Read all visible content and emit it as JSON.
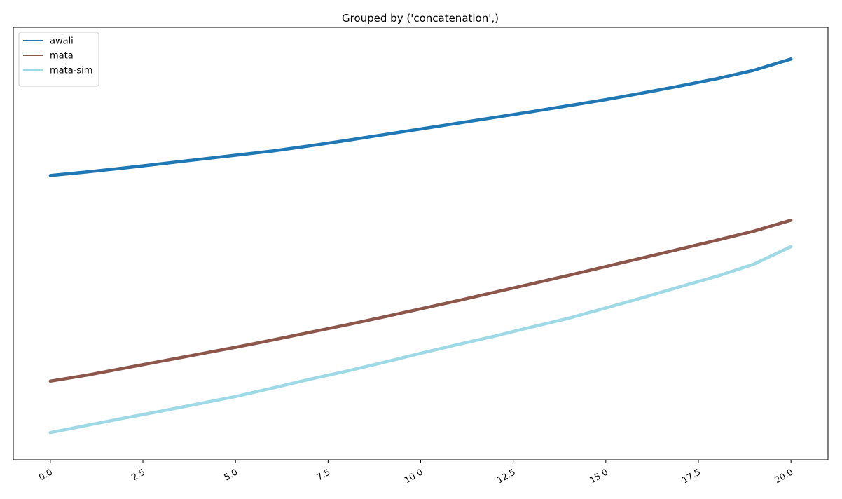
{
  "chart_data": {
    "type": "line",
    "title": "Grouped by ('concatenation',)",
    "xlabel": "",
    "ylabel": "",
    "xlim": [
      -1,
      21
    ],
    "ylim": [
      -0.3,
      14.0
    ],
    "xticks": [
      0,
      2.5,
      5,
      7.5,
      10,
      12.5,
      15,
      17.5,
      20
    ],
    "xtick_labels": [
      "0.0",
      "2.5",
      "5.0",
      "7.5",
      "10.0",
      "12.5",
      "15.0",
      "17.5",
      "20.0"
    ],
    "yticks_shown": false,
    "grid": false,
    "legend_position": "top-left",
    "x": [
      0,
      1,
      2,
      3,
      4,
      5,
      6,
      7,
      8,
      9,
      10,
      11,
      12,
      13,
      14,
      15,
      16,
      17,
      18,
      19,
      20
    ],
    "series": [
      {
        "name": "awali",
        "color": "#1f77b4",
        "values": [
          9.1,
          9.22,
          9.35,
          9.49,
          9.63,
          9.77,
          9.91,
          10.08,
          10.26,
          10.45,
          10.64,
          10.83,
          11.02,
          11.21,
          11.41,
          11.61,
          11.83,
          12.06,
          12.3,
          12.58,
          12.95
        ]
      },
      {
        "name": "mata",
        "color": "#8c564b",
        "values": [
          2.3,
          2.5,
          2.73,
          2.96,
          3.19,
          3.42,
          3.66,
          3.91,
          4.16,
          4.42,
          4.69,
          4.96,
          5.24,
          5.52,
          5.8,
          6.09,
          6.38,
          6.67,
          6.96,
          7.26,
          7.62
        ]
      },
      {
        "name": "mata-sim",
        "color": "#9edae5",
        "values": [
          0.6,
          0.84,
          1.08,
          1.31,
          1.55,
          1.79,
          2.07,
          2.36,
          2.63,
          2.92,
          3.22,
          3.51,
          3.79,
          4.09,
          4.38,
          4.72,
          5.06,
          5.42,
          5.77,
          6.17,
          6.75
        ]
      }
    ]
  }
}
